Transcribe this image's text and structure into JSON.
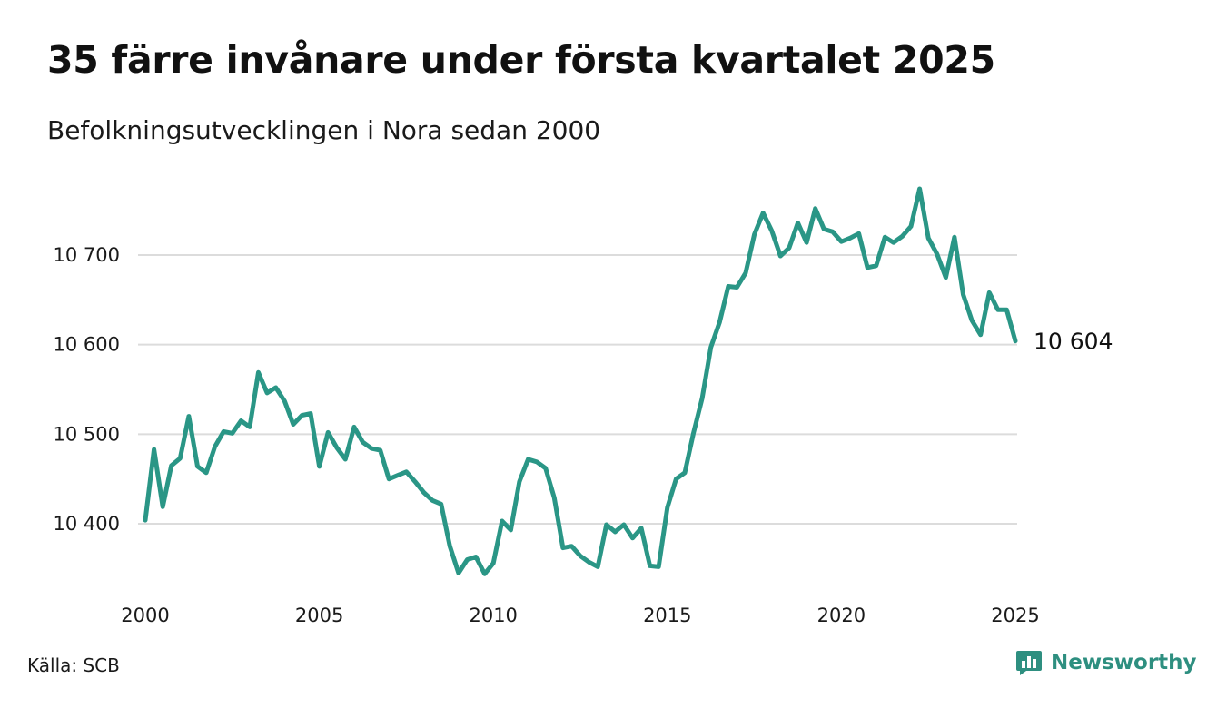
{
  "title": "35 färre invånare under första kvartalet 2025",
  "subtitle": "Befolkningsutvecklingen i Nora sedan 2000",
  "source": "Källa: SCB",
  "brand": {
    "name": "Newsworthy",
    "icon": "bar-chart-speech-bubble-icon",
    "color": "#2e8f80"
  },
  "chart_data": {
    "type": "line",
    "title": "35 färre invånare under första kvartalet 2025",
    "subtitle": "Befolkningsutvecklingen i Nora sedan 2000",
    "xlabel": "",
    "ylabel": "",
    "xlim": [
      2000,
      2025.1
    ],
    "ylim": [
      10340,
      10780
    ],
    "x_ticks": [
      2000,
      2005,
      2010,
      2015,
      2020,
      2025
    ],
    "x_tick_labels": [
      "2000",
      "2005",
      "2010",
      "2015",
      "2020",
      "2025"
    ],
    "y_ticks": [
      10400,
      10500,
      10600,
      10700
    ],
    "y_tick_labels": [
      "10 400",
      "10 500",
      "10 600",
      "10 700"
    ],
    "grid": "horizontal",
    "legend": "none",
    "line_color": "#2a9686",
    "end_label": "10 604",
    "series": [
      {
        "x": [
          2000.0,
          2000.25,
          2000.5,
          2000.75,
          2001.0,
          2001.25,
          2001.5,
          2001.75,
          2002.0,
          2002.25,
          2002.5,
          2002.75,
          2003.0,
          2003.25,
          2003.5,
          2003.75,
          2004.0,
          2004.25,
          2004.5,
          2004.75,
          2005.0,
          2005.25,
          2005.5,
          2005.75,
          2006.0,
          2006.25,
          2006.5,
          2006.75,
          2007.0,
          2007.25,
          2007.5,
          2007.75,
          2008.0,
          2008.25,
          2008.5,
          2008.75,
          2009.0,
          2009.25,
          2009.5,
          2009.75,
          2010.0,
          2010.25,
          2010.5,
          2010.75,
          2011.0,
          2011.25,
          2011.5,
          2011.75,
          2012.0,
          2012.25,
          2012.5,
          2012.75,
          2013.0,
          2013.25,
          2013.5,
          2013.75,
          2014.0,
          2014.25,
          2014.5,
          2014.75,
          2015.0,
          2015.25,
          2015.5,
          2015.75,
          2016.0,
          2016.25,
          2016.5,
          2016.75,
          2017.0,
          2017.25,
          2017.5,
          2017.75,
          2018.0,
          2018.25,
          2018.5,
          2018.75,
          2019.0,
          2019.25,
          2019.5,
          2019.75,
          2020.0,
          2020.25,
          2020.5,
          2020.75,
          2021.0,
          2021.25,
          2021.5,
          2021.75,
          2022.0,
          2022.25,
          2022.5,
          2022.75,
          2023.0,
          2023.25,
          2023.5,
          2023.75,
          2024.0,
          2024.25,
          2024.5,
          2024.75,
          2025.0
        ],
        "values": [
          10404,
          10483,
          10419,
          10465,
          10473,
          10520,
          10464,
          10457,
          10486,
          10503,
          10501,
          10515,
          10508,
          10569,
          10546,
          10552,
          10537,
          10511,
          10521,
          10523,
          10464,
          10502,
          10485,
          10472,
          10508,
          10491,
          10484,
          10482,
          10450,
          10454,
          10458,
          10447,
          10435,
          10426,
          10422,
          10375,
          10345,
          10360,
          10363,
          10344,
          10356,
          10403,
          10393,
          10447,
          10472,
          10469,
          10462,
          10429,
          10373,
          10375,
          10364,
          10357,
          10352,
          10399,
          10391,
          10399,
          10384,
          10395,
          10353,
          10352,
          10418,
          10450,
          10457,
          10501,
          10540,
          10597,
          10625,
          10665,
          10664,
          10680,
          10723,
          10747,
          10727,
          10699,
          10708,
          10736,
          10714,
          10752,
          10729,
          10726,
          10715,
          10719,
          10724,
          10686,
          10688,
          10720,
          10714,
          10721,
          10732,
          10774,
          10719,
          10701,
          10675,
          10720,
          10656,
          10627,
          10611,
          10658,
          10639,
          10639,
          10604
        ]
      }
    ]
  }
}
